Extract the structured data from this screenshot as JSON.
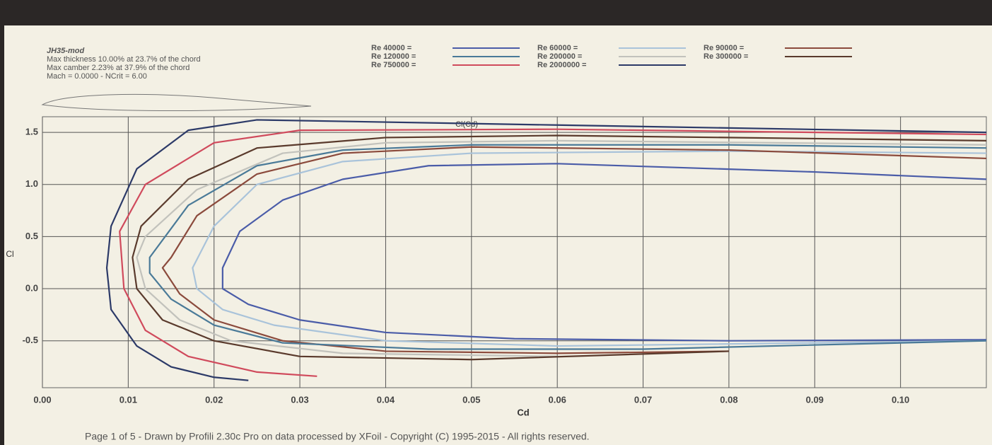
{
  "chart_data": {
    "type": "line",
    "title": "Cl(Cd)",
    "x_label": "Cd",
    "y_label": "Cl",
    "info": [
      "JH35-mod",
      "Max thickness 10.00% at 23.7% of the chord",
      "Max camber 2.23% at 37.9% of the chord",
      "Mach = 0.0000 - NCrit = 6.00"
    ],
    "footer": "Page 1 of 5 - Drawn by Profili 2.30c Pro on data processed by XFoil - Copyright (C) 1995-2015 - All rights reserved.",
    "xlim": [
      0,
      0.11
    ],
    "ylim": [
      -0.95,
      1.65
    ],
    "xticks": [
      {
        "value": 0,
        "label": "0.00"
      },
      0.01,
      0.02,
      0.03,
      0.04,
      0.05,
      0.06,
      0.07,
      0.08,
      0.09,
      {
        "value": 0.1,
        "label": "0.10"
      }
    ],
    "yticks": [
      -0.5,
      {
        "value": 0,
        "label": "0.0"
      },
      0.5,
      {
        "value": 1,
        "label": "1.0"
      },
      1.5
    ],
    "grid": true,
    "series": [
      {
        "name": "Re 40000 =",
        "color": "#4a5ca8",
        "x": [
          0.11,
          0.09,
          0.06,
          0.045,
          0.035,
          0.028,
          0.023,
          0.021,
          0.021,
          0.024,
          0.03,
          0.04,
          0.055,
          0.08,
          0.11
        ],
        "values": [
          1.05,
          1.12,
          1.2,
          1.18,
          1.05,
          0.85,
          0.55,
          0.2,
          0.0,
          -0.15,
          -0.3,
          -0.42,
          -0.48,
          -0.5,
          -0.49
        ]
      },
      {
        "name": "Re 60000 =",
        "color": "#a9c3da",
        "x": [
          0.11,
          0.08,
          0.05,
          0.035,
          0.025,
          0.02,
          0.0175,
          0.018,
          0.021,
          0.027,
          0.04,
          0.06,
          0.11
        ],
        "values": [
          1.3,
          1.32,
          1.3,
          1.22,
          1.0,
          0.6,
          0.2,
          0.0,
          -0.2,
          -0.35,
          -0.5,
          -0.55,
          -0.5
        ]
      },
      {
        "name": "Re 90000 =",
        "color": "#8b4a3c",
        "x": [
          0.11,
          0.08,
          0.05,
          0.035,
          0.025,
          0.018,
          0.015,
          0.014,
          0.016,
          0.02,
          0.028,
          0.04,
          0.06,
          0.08
        ],
        "values": [
          1.25,
          1.33,
          1.36,
          1.3,
          1.1,
          0.7,
          0.3,
          0.2,
          -0.05,
          -0.3,
          -0.5,
          -0.6,
          -0.62,
          -0.6
        ]
      },
      {
        "name": "Re 120000 =",
        "color": "#4a7a98",
        "x": [
          0.11,
          0.08,
          0.05,
          0.035,
          0.025,
          0.017,
          0.0125,
          0.0125,
          0.015,
          0.02,
          0.028,
          0.045,
          0.07,
          0.11
        ],
        "values": [
          1.35,
          1.38,
          1.38,
          1.33,
          1.18,
          0.8,
          0.3,
          0.15,
          -0.1,
          -0.35,
          -0.52,
          -0.58,
          -0.58,
          -0.5
        ]
      },
      {
        "name": "Re 200000 =",
        "color": "#c2c2bc",
        "x": [
          0.11,
          0.06,
          0.04,
          0.028,
          0.018,
          0.012,
          0.011,
          0.012,
          0.016,
          0.022,
          0.035,
          0.06
        ],
        "values": [
          1.38,
          1.42,
          1.4,
          1.3,
          0.95,
          0.5,
          0.3,
          0.0,
          -0.3,
          -0.5,
          -0.62,
          -0.65
        ]
      },
      {
        "name": "Re 300000 =",
        "color": "#5a3a2c",
        "x": [
          0.11,
          0.06,
          0.04,
          0.025,
          0.017,
          0.0115,
          0.0105,
          0.011,
          0.014,
          0.02,
          0.03,
          0.05,
          0.08
        ],
        "values": [
          1.42,
          1.47,
          1.45,
          1.35,
          1.05,
          0.6,
          0.3,
          0.0,
          -0.3,
          -0.5,
          -0.65,
          -0.68,
          -0.6
        ]
      },
      {
        "name": "Re 750000 =",
        "color": "#d04a5c",
        "x": [
          0.11,
          0.06,
          0.03,
          0.02,
          0.012,
          0.009,
          0.0095,
          0.012,
          0.017,
          0.025,
          0.032
        ],
        "values": [
          1.48,
          1.53,
          1.52,
          1.4,
          1.0,
          0.55,
          0.0,
          -0.4,
          -0.65,
          -0.8,
          -0.84
        ]
      },
      {
        "name": "Re 2000000 =",
        "color": "#2c3a68",
        "x": [
          0.11,
          0.06,
          0.025,
          0.017,
          0.011,
          0.008,
          0.0075,
          0.008,
          0.011,
          0.015,
          0.02,
          0.024
        ],
        "values": [
          1.5,
          1.57,
          1.62,
          1.52,
          1.15,
          0.6,
          0.2,
          -0.2,
          -0.55,
          -0.75,
          -0.85,
          -0.88
        ]
      }
    ]
  }
}
